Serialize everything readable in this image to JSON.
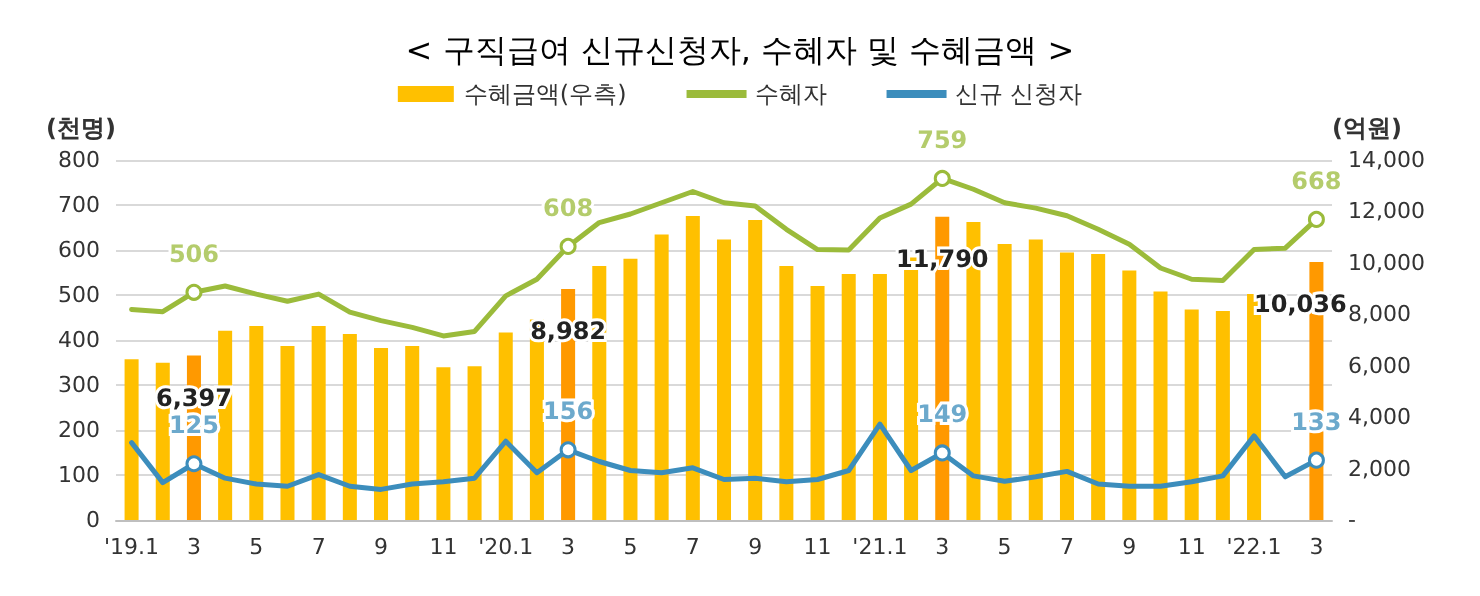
{
  "chart_data": {
    "type": "bar",
    "title": "< 구직급여 신규신청자, 수혜자 및 수혜금액 >",
    "ylabel": "(천명)",
    "y2label": "(억원)",
    "categories": [
      "'19.1",
      null,
      "3",
      null,
      "5",
      null,
      "7",
      null,
      "9",
      null,
      "11",
      null,
      "'20.1",
      null,
      "3",
      null,
      "5",
      null,
      "7",
      null,
      "9",
      null,
      "11",
      null,
      "'21.1",
      null,
      "3",
      null,
      "5",
      null,
      "7",
      null,
      "9",
      null,
      "11",
      null,
      "'22.1",
      null,
      "3"
    ],
    "series": [
      {
        "name": "수혜금액(우측)",
        "axis": "y2",
        "color": "#ffc000",
        "colors": [
          "#ffc000",
          "#ffc000",
          "#ff9900",
          "#ffc000",
          "#ffc000",
          "#ffc000",
          "#ffc000",
          "#ffc000",
          "#ffc000",
          "#ffc000",
          "#ffc000",
          "#ffc000",
          "#ffc000",
          "#ffc000",
          "#ff9900",
          "#ffc000",
          "#ffc000",
          "#ffc000",
          "#ffc000",
          "#ffc000",
          "#ffc000",
          "#ffc000",
          "#ffc000",
          "#ffc000",
          "#ffc000",
          "#ffc000",
          "#ff9900",
          "#ffc000",
          "#ffc000",
          "#ffc000",
          "#ffc000",
          "#ffc000",
          "#ffc000",
          "#ffc000",
          "#ffc000",
          "#ffc000",
          "#ffc000",
          "#ffc000",
          "#ff9900"
        ],
        "values": [
          6250,
          6120,
          6397,
          7360,
          7540,
          6770,
          7540,
          7230,
          6690,
          6770,
          5940,
          5980,
          7290,
          7800,
          8982,
          9880,
          10160,
          11100,
          11820,
          10910,
          11670,
          9880,
          9100,
          9570,
          9570,
          10210,
          11790,
          11590,
          10730,
          10910,
          10400,
          10340,
          9700,
          8890,
          8190,
          8130,
          8790,
          null,
          10036
        ],
        "value_labels": [
          null,
          null,
          "6,397",
          null,
          null,
          null,
          null,
          null,
          null,
          null,
          null,
          null,
          null,
          null,
          "8,982",
          null,
          null,
          null,
          null,
          null,
          null,
          null,
          null,
          null,
          null,
          null,
          "11,790",
          null,
          null,
          null,
          null,
          null,
          null,
          null,
          null,
          null,
          null,
          null,
          "10,036"
        ]
      },
      {
        "name": "수혜자",
        "type": "line",
        "color": "#9bbb3b",
        "values": [
          468,
          463,
          506,
          520,
          502,
          486,
          502,
          462,
          443,
          428,
          409,
          419,
          498,
          535,
          608,
          661,
          680,
          705,
          730,
          705,
          698,
          646,
          601,
          600,
          671,
          702,
          759,
          735,
          705,
          693,
          676,
          646,
          613,
          560,
          535,
          532,
          601,
          604,
          668
        ],
        "value_labels": [
          null,
          null,
          "506",
          null,
          null,
          null,
          null,
          null,
          null,
          null,
          null,
          null,
          null,
          null,
          "608",
          null,
          null,
          null,
          null,
          null,
          null,
          null,
          null,
          null,
          null,
          null,
          "759",
          null,
          null,
          null,
          null,
          null,
          null,
          null,
          null,
          null,
          null,
          null,
          "668"
        ]
      },
      {
        "name": "신규 신청자",
        "type": "line",
        "color": "#3c8dbc",
        "values": [
          172,
          83,
          125,
          93,
          80,
          75,
          101,
          75,
          68,
          80,
          85,
          93,
          175,
          105,
          156,
          130,
          110,
          105,
          116,
          90,
          93,
          85,
          90,
          110,
          213,
          110,
          149,
          98,
          86,
          96,
          108,
          80,
          75,
          75,
          85,
          98,
          187,
          96,
          133
        ],
        "value_labels": [
          null,
          null,
          "125",
          null,
          null,
          null,
          null,
          null,
          null,
          null,
          null,
          null,
          null,
          null,
          "156",
          null,
          null,
          null,
          null,
          null,
          null,
          null,
          null,
          null,
          null,
          null,
          "149",
          null,
          null,
          null,
          null,
          null,
          null,
          null,
          null,
          null,
          null,
          null,
          "133"
        ]
      }
    ],
    "ylim": [
      0,
      800
    ],
    "yticks": [
      0,
      100,
      200,
      300,
      400,
      500,
      600,
      700,
      800
    ],
    "y2lim": [
      0,
      14000
    ],
    "y2ticks": [
      {
        "value": 0,
        "label": "-"
      },
      {
        "value": 2000,
        "label": "2,000"
      },
      {
        "value": 4000,
        "label": "4,000"
      },
      {
        "value": 6000,
        "label": "6,000"
      },
      {
        "value": 8000,
        "label": "8,000"
      },
      {
        "value": 10000,
        "label": "10,000"
      },
      {
        "value": 12000,
        "label": "12,000"
      },
      {
        "value": 14000,
        "label": "14,000"
      }
    ],
    "grid": "y",
    "legend": "top",
    "line_style": "solid"
  }
}
